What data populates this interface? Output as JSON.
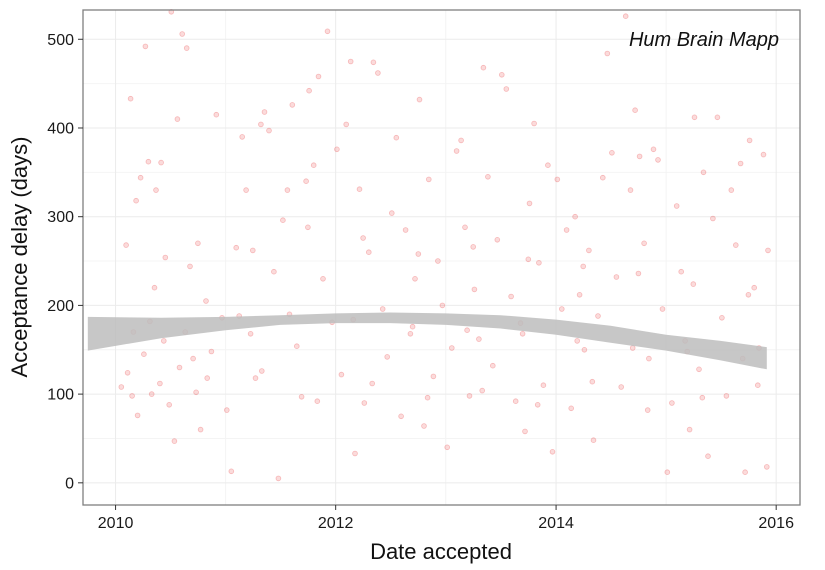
{
  "chart_data": {
    "type": "scatter",
    "title": "",
    "annotation": "Hum Brain Mapp",
    "xlabel": "Date accepted",
    "ylabel": "Acceptance delay (days)",
    "x_ticks": [
      "2010",
      "2012",
      "2014",
      "2016"
    ],
    "y_ticks": [
      "0",
      "100",
      "200",
      "300",
      "400",
      "500"
    ],
    "xlim": [
      "2009-09-15",
      "2016-03-20"
    ],
    "ylim": [
      -25,
      533
    ],
    "grid": true,
    "legend": "none",
    "point_color": "#e8373a",
    "point_alpha": 0.18,
    "band_color": "#bdbdbd",
    "trend_band": {
      "x": [
        "2009-10-01",
        "2010-06-01",
        "2011-01-01",
        "2011-07-01",
        "2012-01-01",
        "2012-07-01",
        "2013-01-01",
        "2013-07-01",
        "2014-01-01",
        "2014-07-01",
        "2015-01-01",
        "2015-07-01",
        "2015-12-01"
      ],
      "lower": [
        149,
        163,
        172,
        178,
        180,
        180,
        178,
        174,
        167,
        158,
        149,
        138,
        128
      ],
      "upper": [
        187,
        186,
        187,
        189,
        191,
        192,
        191,
        189,
        184,
        177,
        167,
        160,
        153
      ]
    },
    "points": [
      [
        "2010-02-05",
        268
      ],
      [
        "2010-02-20",
        433
      ],
      [
        "2010-03-10",
        318
      ],
      [
        "2010-03-25",
        344
      ],
      [
        "2010-04-10",
        492
      ],
      [
        "2010-04-20",
        362
      ],
      [
        "2010-05-15",
        330
      ],
      [
        "2010-06-01",
        361
      ],
      [
        "2010-06-15",
        254
      ],
      [
        "2010-07-05",
        531
      ],
      [
        "2010-07-25",
        410
      ],
      [
        "2010-08-10",
        506
      ],
      [
        "2010-08-25",
        490
      ],
      [
        "2010-02-10",
        124
      ],
      [
        "2010-02-25",
        98
      ],
      [
        "2010-03-15",
        76
      ],
      [
        "2010-04-05",
        145
      ],
      [
        "2010-04-25",
        182
      ],
      [
        "2010-05-10",
        220
      ],
      [
        "2010-05-28",
        112
      ],
      [
        "2010-06-10",
        160
      ],
      [
        "2010-06-28",
        88
      ],
      [
        "2010-07-15",
        47
      ],
      [
        "2010-08-01",
        130
      ],
      [
        "2010-08-20",
        170
      ],
      [
        "2010-09-05",
        244
      ],
      [
        "2010-09-25",
        102
      ],
      [
        "2010-10-10",
        60
      ],
      [
        "2010-10-28",
        205
      ],
      [
        "2010-11-15",
        148
      ],
      [
        "2010-12-01",
        415
      ],
      [
        "2010-12-20",
        186
      ],
      [
        "2011-01-05",
        82
      ],
      [
        "2011-01-20",
        13
      ],
      [
        "2011-02-05",
        265
      ],
      [
        "2011-02-25",
        390
      ],
      [
        "2011-03-10",
        330
      ],
      [
        "2011-03-25",
        168
      ],
      [
        "2011-04-10",
        118
      ],
      [
        "2011-04-28",
        404
      ],
      [
        "2011-05-10",
        418
      ],
      [
        "2011-05-25",
        397
      ],
      [
        "2011-06-10",
        238
      ],
      [
        "2011-06-25",
        5
      ],
      [
        "2011-07-10",
        296
      ],
      [
        "2011-07-25",
        330
      ],
      [
        "2011-08-10",
        426
      ],
      [
        "2011-08-25",
        154
      ],
      [
        "2011-09-10",
        97
      ],
      [
        "2011-09-25",
        340
      ],
      [
        "2011-10-05",
        442
      ],
      [
        "2011-10-20",
        358
      ],
      [
        "2011-11-05",
        458
      ],
      [
        "2011-11-20",
        230
      ],
      [
        "2011-12-05",
        509
      ],
      [
        "2011-12-20",
        181
      ],
      [
        "2012-01-05",
        376
      ],
      [
        "2012-01-20",
        122
      ],
      [
        "2012-02-05",
        404
      ],
      [
        "2012-02-20",
        475
      ],
      [
        "2012-03-05",
        33
      ],
      [
        "2012-03-20",
        331
      ],
      [
        "2012-04-05",
        90
      ],
      [
        "2012-04-20",
        260
      ],
      [
        "2012-05-05",
        474
      ],
      [
        "2012-05-20",
        462
      ],
      [
        "2012-06-05",
        196
      ],
      [
        "2012-06-20",
        142
      ],
      [
        "2012-07-05",
        304
      ],
      [
        "2012-07-20",
        389
      ],
      [
        "2012-08-05",
        75
      ],
      [
        "2012-08-20",
        285
      ],
      [
        "2012-09-05",
        168
      ],
      [
        "2012-09-20",
        230
      ],
      [
        "2012-10-05",
        432
      ],
      [
        "2012-10-20",
        64
      ],
      [
        "2012-11-05",
        342
      ],
      [
        "2012-11-20",
        120
      ],
      [
        "2012-12-05",
        250
      ],
      [
        "2012-12-20",
        200
      ],
      [
        "2013-01-05",
        40
      ],
      [
        "2013-01-20",
        152
      ],
      [
        "2013-02-05",
        374
      ],
      [
        "2013-02-20",
        386
      ],
      [
        "2013-03-05",
        288
      ],
      [
        "2013-03-20",
        98
      ],
      [
        "2013-04-05",
        218
      ],
      [
        "2013-04-20",
        162
      ],
      [
        "2013-05-05",
        468
      ],
      [
        "2013-05-20",
        345
      ],
      [
        "2013-06-05",
        132
      ],
      [
        "2013-06-20",
        274
      ],
      [
        "2013-07-05",
        460
      ],
      [
        "2013-07-20",
        444
      ],
      [
        "2013-08-05",
        210
      ],
      [
        "2013-08-20",
        92
      ],
      [
        "2013-09-05",
        180
      ],
      [
        "2013-09-20",
        58
      ],
      [
        "2013-10-05",
        315
      ],
      [
        "2013-10-20",
        405
      ],
      [
        "2013-11-05",
        248
      ],
      [
        "2013-11-20",
        110
      ],
      [
        "2013-12-05",
        358
      ],
      [
        "2013-12-20",
        35
      ],
      [
        "2014-01-05",
        342
      ],
      [
        "2014-01-20",
        196
      ],
      [
        "2014-02-05",
        285
      ],
      [
        "2014-02-20",
        84
      ],
      [
        "2014-03-05",
        300
      ],
      [
        "2014-03-20",
        212
      ],
      [
        "2014-04-05",
        150
      ],
      [
        "2014-04-20",
        262
      ],
      [
        "2014-05-05",
        48
      ],
      [
        "2014-05-20",
        188
      ],
      [
        "2014-06-05",
        344
      ],
      [
        "2014-06-20",
        484
      ],
      [
        "2014-07-05",
        372
      ],
      [
        "2014-07-20",
        232
      ],
      [
        "2014-08-05",
        108
      ],
      [
        "2014-08-20",
        526
      ],
      [
        "2014-09-05",
        330
      ],
      [
        "2014-09-20",
        420
      ],
      [
        "2014-10-05",
        368
      ],
      [
        "2014-10-20",
        270
      ],
      [
        "2014-11-05",
        140
      ],
      [
        "2014-11-20",
        376
      ],
      [
        "2014-12-05",
        364
      ],
      [
        "2014-12-20",
        196
      ],
      [
        "2015-01-05",
        12
      ],
      [
        "2015-01-20",
        90
      ],
      [
        "2015-02-05",
        312
      ],
      [
        "2015-02-20",
        238
      ],
      [
        "2015-03-05",
        160
      ],
      [
        "2015-03-20",
        60
      ],
      [
        "2015-04-05",
        412
      ],
      [
        "2015-04-20",
        128
      ],
      [
        "2015-05-05",
        350
      ],
      [
        "2015-05-20",
        30
      ],
      [
        "2015-06-05",
        298
      ],
      [
        "2015-06-20",
        412
      ],
      [
        "2015-07-05",
        186
      ],
      [
        "2015-07-20",
        98
      ],
      [
        "2015-08-05",
        330
      ],
      [
        "2015-08-20",
        268
      ],
      [
        "2015-09-05",
        360
      ],
      [
        "2015-09-20",
        12
      ],
      [
        "2015-10-05",
        386
      ],
      [
        "2015-10-20",
        220
      ],
      [
        "2015-11-05",
        152
      ],
      [
        "2015-11-20",
        370
      ],
      [
        "2015-12-01",
        18
      ],
      [
        "2015-12-05",
        262
      ],
      [
        "2010-01-20",
        108
      ],
      [
        "2010-03-01",
        170
      ],
      [
        "2010-09-15",
        140
      ],
      [
        "2011-02-15",
        188
      ],
      [
        "2011-08-01",
        190
      ],
      [
        "2012-02-28",
        184
      ],
      [
        "2012-09-12",
        176
      ],
      [
        "2013-03-12",
        172
      ],
      [
        "2013-09-12",
        168
      ],
      [
        "2014-03-12",
        160
      ],
      [
        "2014-09-12",
        152
      ],
      [
        "2015-03-12",
        148
      ],
      [
        "2015-09-12",
        140
      ],
      [
        "2010-05-01",
        100
      ],
      [
        "2010-11-01",
        118
      ],
      [
        "2011-05-01",
        126
      ],
      [
        "2011-11-01",
        92
      ],
      [
        "2012-05-01",
        112
      ],
      [
        "2012-11-01",
        96
      ],
      [
        "2013-05-01",
        104
      ],
      [
        "2013-11-01",
        88
      ],
      [
        "2014-05-01",
        114
      ],
      [
        "2014-11-01",
        82
      ],
      [
        "2015-05-01",
        96
      ],
      [
        "2015-11-01",
        110
      ],
      [
        "2010-10-01",
        270
      ],
      [
        "2011-04-01",
        262
      ],
      [
        "2011-10-01",
        288
      ],
      [
        "2012-04-01",
        276
      ],
      [
        "2012-10-01",
        258
      ],
      [
        "2013-04-01",
        266
      ],
      [
        "2013-10-01",
        252
      ],
      [
        "2014-04-01",
        244
      ],
      [
        "2014-10-01",
        236
      ],
      [
        "2015-04-01",
        224
      ],
      [
        "2015-10-01",
        212
      ]
    ]
  }
}
